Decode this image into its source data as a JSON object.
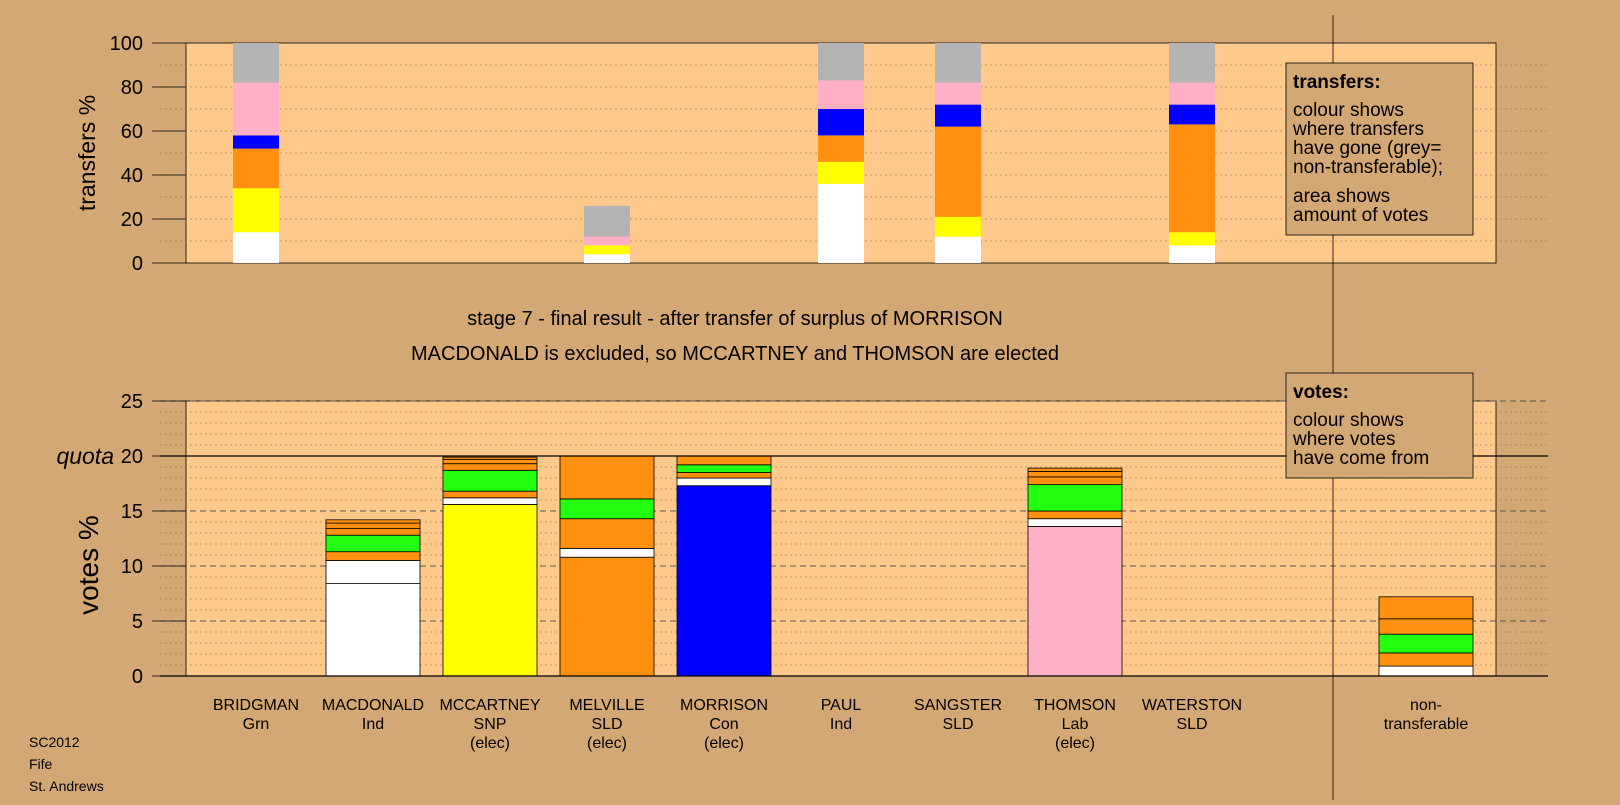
{
  "title": "stage 7 - final result - after transfer of surplus of MORRISON",
  "subtitle": "MACDONALD is excluded, so MCCARTNEY and THOMSON are elected",
  "footer": [
    "SC2012",
    "Fife",
    "St. Andrews"
  ],
  "legend_transfers": {
    "heading": "transfers:",
    "lines1": [
      "colour shows",
      "where transfers",
      "have gone (grey=",
      "non-transferable);"
    ],
    "lines2": [
      "area shows",
      "amount of votes"
    ]
  },
  "legend_votes": {
    "heading": "votes:",
    "lines": [
      "colour shows",
      "where votes",
      "have come from"
    ]
  },
  "colors": {
    "background": "#d4a874",
    "plot_bg": "#ffc98c",
    "Ind": "#ffffff",
    "SNP": "#ffff00",
    "SLD": "#ff9010",
    "Grn": "#22ff11",
    "Con": "#0000ff",
    "Lab": "#ffb0c4",
    "NT": "#b4b4b4"
  },
  "chart_data": [
    {
      "type": "bar",
      "subtype": "stacked",
      "ylabel": "transfers %",
      "ylim": [
        0,
        100
      ],
      "yticks": [
        0,
        20,
        40,
        60,
        80,
        100
      ],
      "grid": true,
      "bars": [
        {
          "category": "BRIDGMAN",
          "segments": [
            [
              "Ind",
              14
            ],
            [
              "SNP",
              20
            ],
            [
              "SLD",
              18
            ],
            [
              "Con",
              6
            ],
            [
              "Lab",
              24
            ],
            [
              "NT",
              18
            ]
          ]
        },
        {
          "category": "MELVILLE",
          "segments": [
            [
              "Ind",
              4
            ],
            [
              "SNP",
              4
            ],
            [
              "Lab",
              4
            ],
            [
              "NT",
              14
            ]
          ]
        },
        {
          "category": "PAUL",
          "segments": [
            [
              "Ind",
              36
            ],
            [
              "SNP",
              10
            ],
            [
              "SLD",
              12
            ],
            [
              "Con",
              12
            ],
            [
              "Lab",
              13
            ],
            [
              "NT",
              17
            ]
          ]
        },
        {
          "category": "SANGSTER",
          "segments": [
            [
              "Ind",
              12
            ],
            [
              "SNP",
              9
            ],
            [
              "SLD",
              41
            ],
            [
              "Con",
              10
            ],
            [
              "Lab",
              10
            ],
            [
              "NT",
              18
            ]
          ]
        },
        {
          "category": "WATERSTON",
          "segments": [
            [
              "Ind",
              8
            ],
            [
              "SNP",
              6
            ],
            [
              "SLD",
              49
            ],
            [
              "Con",
              9
            ],
            [
              "Lab",
              10
            ],
            [
              "NT",
              18
            ]
          ]
        }
      ]
    },
    {
      "type": "bar",
      "subtype": "stacked",
      "ylabel": "votes %",
      "ylim": [
        0,
        25
      ],
      "yticks": [
        0,
        5,
        10,
        15,
        20,
        25
      ],
      "quota": 20,
      "quota_label": "quota",
      "grid": true,
      "categories": [
        {
          "name": "BRIDGMAN",
          "party": "Grn",
          "status": ""
        },
        {
          "name": "MACDONALD",
          "party": "Ind",
          "status": ""
        },
        {
          "name": "MCCARTNEY",
          "party": "SNP",
          "status": "(elec)"
        },
        {
          "name": "MELVILLE",
          "party": "SLD",
          "status": "(elec)"
        },
        {
          "name": "MORRISON",
          "party": "Con",
          "status": "(elec)"
        },
        {
          "name": "PAUL",
          "party": "Ind",
          "status": ""
        },
        {
          "name": "SANGSTER",
          "party": "SLD",
          "status": ""
        },
        {
          "name": "THOMSON",
          "party": "Lab",
          "status": "(elec)"
        },
        {
          "name": "WATERSTON",
          "party": "SLD",
          "status": ""
        },
        {
          "name": "non-",
          "party": "transferable",
          "status": ""
        }
      ],
      "bars": [
        {
          "category": "BRIDGMAN",
          "segments": []
        },
        {
          "category": "MACDONALD",
          "segments": [
            [
              "Ind",
              8.4
            ],
            [
              "Ind",
              2.1
            ],
            [
              "SLD",
              0.8
            ],
            [
              "Grn",
              1.5
            ],
            [
              "SLD",
              0.6
            ],
            [
              "SLD",
              0.5
            ],
            [
              "SLD",
              0.3
            ]
          ]
        },
        {
          "category": "MCCARTNEY",
          "segments": [
            [
              "SNP",
              15.6
            ],
            [
              "Ind",
              0.6
            ],
            [
              "SLD",
              0.6
            ],
            [
              "Grn",
              1.9
            ],
            [
              "SLD",
              0.6
            ],
            [
              "SLD",
              0.4
            ],
            [
              "SLD",
              0.2
            ]
          ]
        },
        {
          "category": "MELVILLE",
          "segments": [
            [
              "SLD",
              10.8
            ],
            [
              "Ind",
              0.8
            ],
            [
              "SLD",
              2.7
            ],
            [
              "Grn",
              1.8
            ],
            [
              "SLD",
              3.9
            ]
          ]
        },
        {
          "category": "MORRISON",
          "segments": [
            [
              "Con",
              17.3
            ],
            [
              "Ind",
              0.7
            ],
            [
              "SLD",
              0.5
            ],
            [
              "Grn",
              0.7
            ],
            [
              "SLD",
              0.8
            ]
          ]
        },
        {
          "category": "PAUL",
          "segments": []
        },
        {
          "category": "SANGSTER",
          "segments": []
        },
        {
          "category": "THOMSON",
          "segments": [
            [
              "Lab",
              13.6
            ],
            [
              "Ind",
              0.7
            ],
            [
              "SLD",
              0.7
            ],
            [
              "Grn",
              2.4
            ],
            [
              "SLD",
              0.7
            ],
            [
              "SLD",
              0.5
            ],
            [
              "SLD",
              0.3
            ]
          ]
        },
        {
          "category": "WATERSTON",
          "segments": []
        },
        {
          "category": "non-",
          "segments": [
            [
              "Ind",
              0.9
            ],
            [
              "SLD",
              1.2
            ],
            [
              "Grn",
              1.7
            ],
            [
              "SLD",
              1.4
            ],
            [
              "SLD",
              2.0
            ]
          ]
        }
      ]
    }
  ]
}
